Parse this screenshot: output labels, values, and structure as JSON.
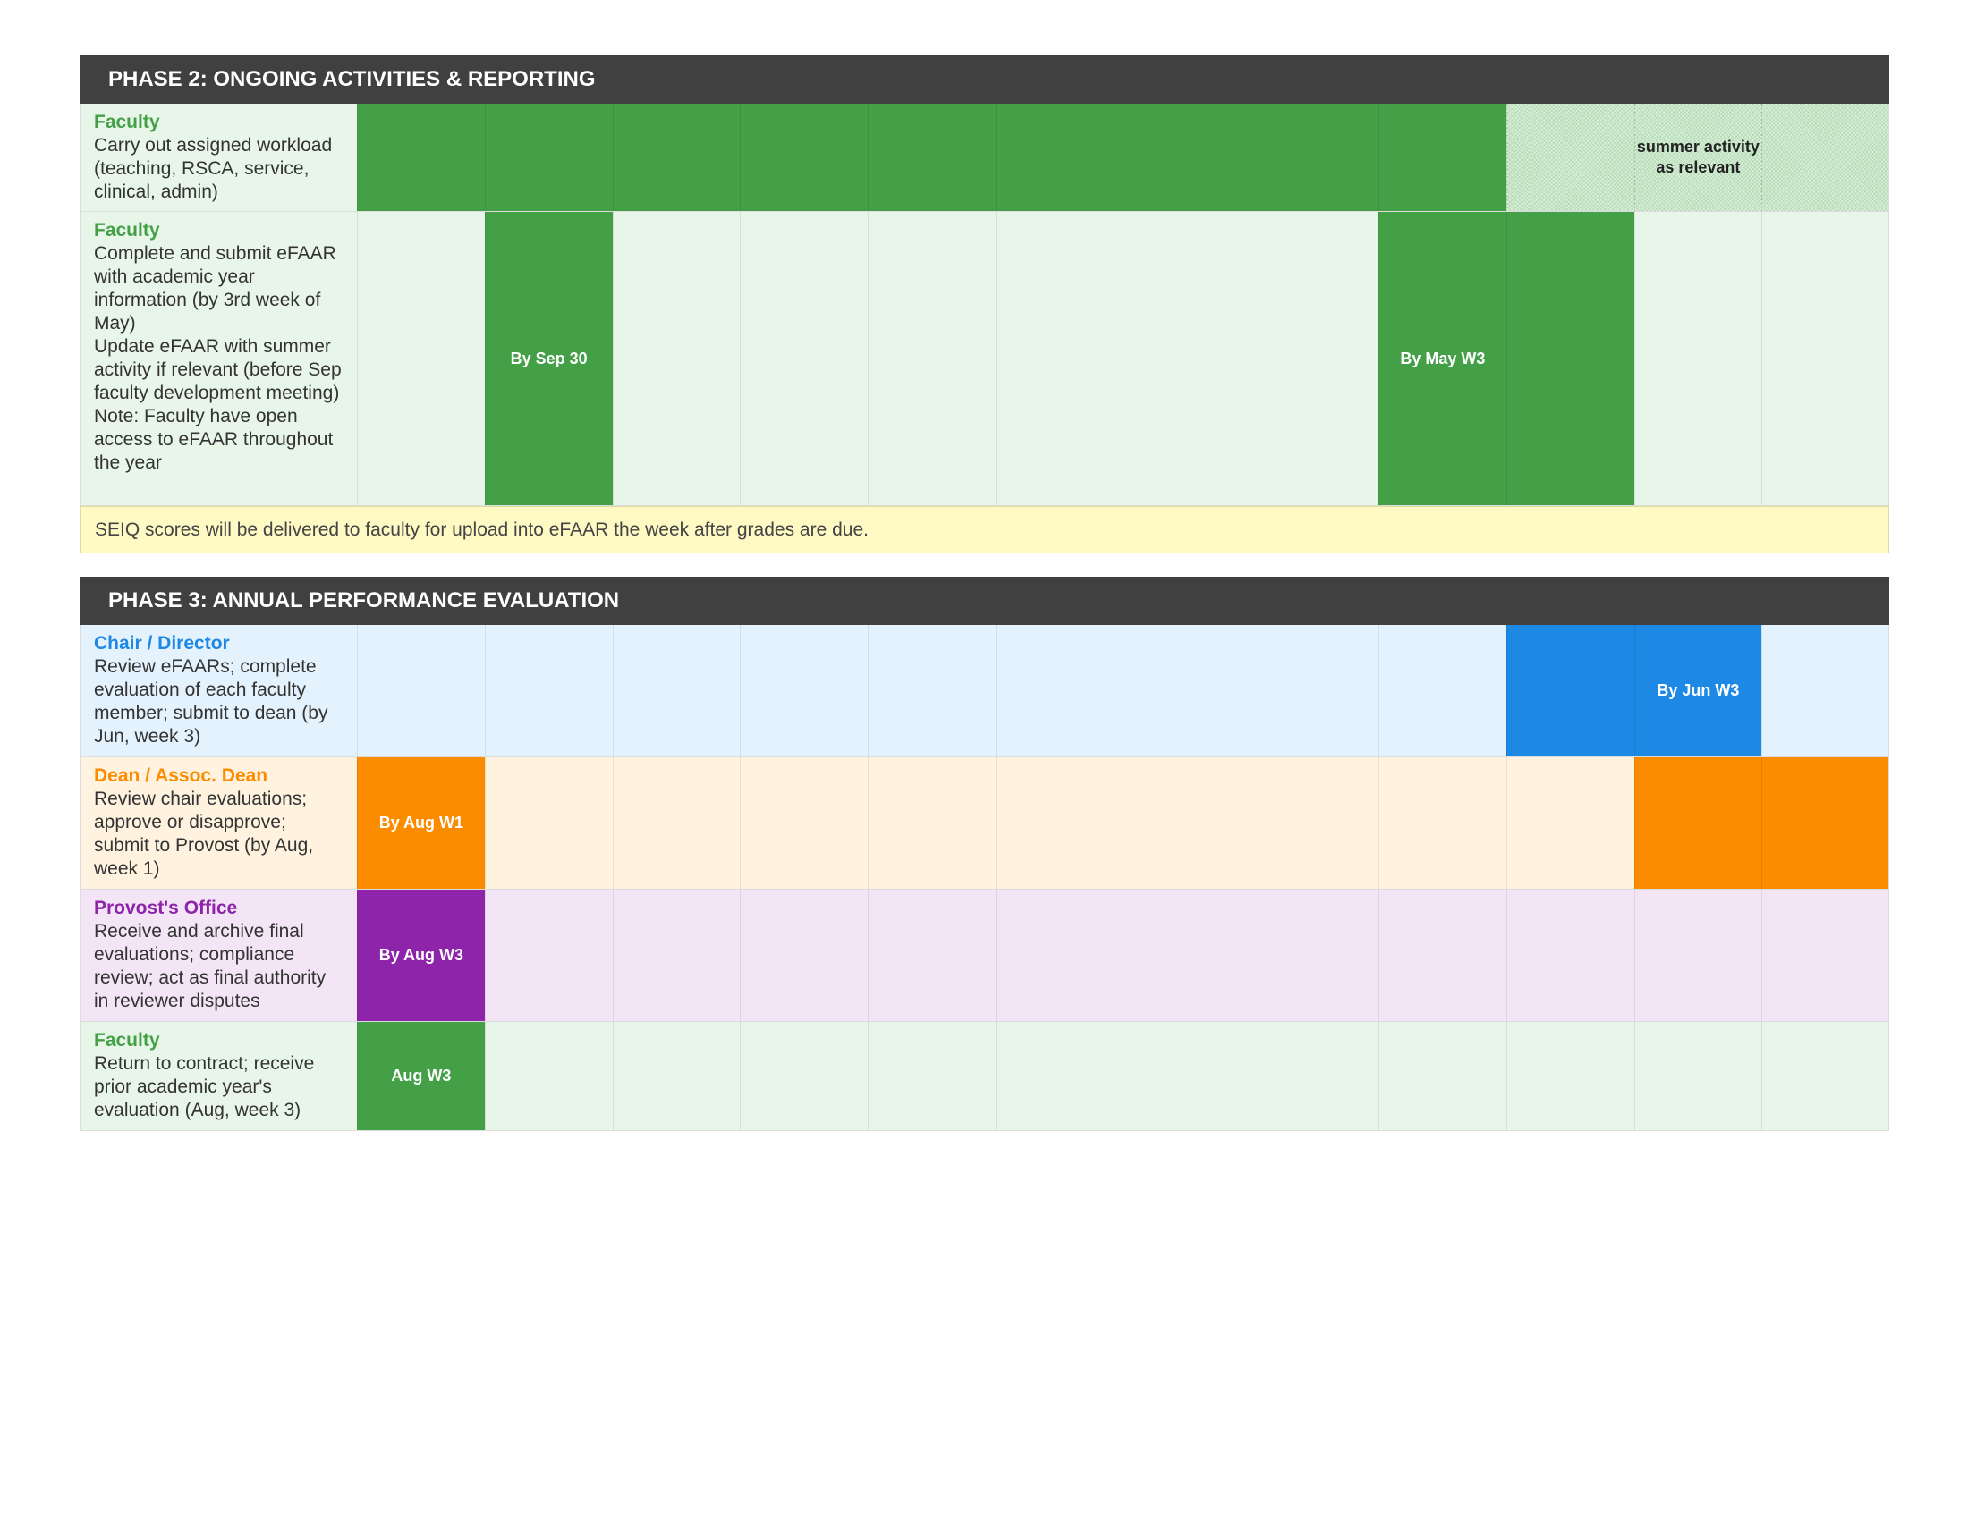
{
  "phase2": {
    "title": "PHASE 2: ONGOING ACTIVITIES & REPORTING",
    "rows": [
      {
        "role": "Faculty",
        "description": "Carry out assigned workload (teaching, RSCA, service, clinical, admin)",
        "cells": [
          {
            "fill": "green",
            "text": ""
          },
          {
            "fill": "green",
            "text": ""
          },
          {
            "fill": "green",
            "text": ""
          },
          {
            "fill": "green",
            "text": ""
          },
          {
            "fill": "green",
            "text": ""
          },
          {
            "fill": "green",
            "text": ""
          },
          {
            "fill": "green",
            "text": ""
          },
          {
            "fill": "green",
            "text": ""
          },
          {
            "fill": "green",
            "text": ""
          },
          {
            "fill": "hatch",
            "text": ""
          },
          {
            "fill": "hatch",
            "text": "summer activity as relevant"
          },
          {
            "fill": "hatch",
            "text": ""
          }
        ]
      },
      {
        "role": "Faculty",
        "description": "Complete and submit eFAAR with academic year information (by 3rd week of May)\nUpdate eFAAR with summer activity if relevant (before Sep faculty development meeting)\nNote: Faculty have open access to eFAAR throughout the year",
        "cells": [
          {
            "fill": "",
            "text": ""
          },
          {
            "fill": "green",
            "text": "By Sep 30"
          },
          {
            "fill": "",
            "text": ""
          },
          {
            "fill": "",
            "text": ""
          },
          {
            "fill": "",
            "text": ""
          },
          {
            "fill": "",
            "text": ""
          },
          {
            "fill": "",
            "text": ""
          },
          {
            "fill": "",
            "text": ""
          },
          {
            "fill": "green",
            "text": "By May W3"
          },
          {
            "fill": "green",
            "text": ""
          },
          {
            "fill": "",
            "text": ""
          },
          {
            "fill": "",
            "text": ""
          }
        ]
      }
    ],
    "note": "SEIQ scores will be delivered to faculty for upload into eFAAR the week after grades are due."
  },
  "phase3": {
    "title": "PHASE 3: ANNUAL PERFORMANCE EVALUATION",
    "rows": [
      {
        "role": "Chair / Director",
        "description": "Review eFAARs; complete evaluation of each faculty member; submit to dean (by Jun, week 3)",
        "cells": [
          {
            "fill": "",
            "text": ""
          },
          {
            "fill": "",
            "text": ""
          },
          {
            "fill": "",
            "text": ""
          },
          {
            "fill": "",
            "text": ""
          },
          {
            "fill": "",
            "text": ""
          },
          {
            "fill": "",
            "text": ""
          },
          {
            "fill": "",
            "text": ""
          },
          {
            "fill": "",
            "text": ""
          },
          {
            "fill": "",
            "text": ""
          },
          {
            "fill": "blue",
            "text": ""
          },
          {
            "fill": "blue",
            "text": "By Jun W3"
          },
          {
            "fill": "",
            "text": ""
          }
        ]
      },
      {
        "role": "Dean / Assoc. Dean",
        "description": "Review chair evaluations; approve or disapprove; submit to Provost (by Aug, week 1)",
        "cells": [
          {
            "fill": "orange",
            "text": "By Aug W1"
          },
          {
            "fill": "",
            "text": ""
          },
          {
            "fill": "",
            "text": ""
          },
          {
            "fill": "",
            "text": ""
          },
          {
            "fill": "",
            "text": ""
          },
          {
            "fill": "",
            "text": ""
          },
          {
            "fill": "",
            "text": ""
          },
          {
            "fill": "",
            "text": ""
          },
          {
            "fill": "",
            "text": ""
          },
          {
            "fill": "",
            "text": ""
          },
          {
            "fill": "orange",
            "text": ""
          },
          {
            "fill": "orange",
            "text": ""
          }
        ]
      },
      {
        "role": "Provost's Office",
        "description": "Receive and archive final evaluations; compliance review; act as final authority in reviewer disputes",
        "cells": [
          {
            "fill": "purple",
            "text": "By Aug W3"
          },
          {
            "fill": "",
            "text": ""
          },
          {
            "fill": "",
            "text": ""
          },
          {
            "fill": "",
            "text": ""
          },
          {
            "fill": "",
            "text": ""
          },
          {
            "fill": "",
            "text": ""
          },
          {
            "fill": "",
            "text": ""
          },
          {
            "fill": "",
            "text": ""
          },
          {
            "fill": "",
            "text": ""
          },
          {
            "fill": "",
            "text": ""
          },
          {
            "fill": "",
            "text": ""
          },
          {
            "fill": "",
            "text": ""
          }
        ]
      },
      {
        "role": "Faculty",
        "description": "Return to contract; receive prior academic year's evaluation (Aug, week 3)",
        "cells": [
          {
            "fill": "green",
            "text": "Aug W3"
          },
          {
            "fill": "",
            "text": ""
          },
          {
            "fill": "",
            "text": ""
          },
          {
            "fill": "",
            "text": ""
          },
          {
            "fill": "",
            "text": ""
          },
          {
            "fill": "",
            "text": ""
          },
          {
            "fill": "",
            "text": ""
          },
          {
            "fill": "",
            "text": ""
          },
          {
            "fill": "",
            "text": ""
          },
          {
            "fill": "",
            "text": ""
          },
          {
            "fill": "",
            "text": ""
          },
          {
            "fill": "",
            "text": ""
          }
        ]
      }
    ]
  },
  "colors": {
    "header": "#404040",
    "green": "#43a047",
    "blue": "#1e88e5",
    "orange": "#fb8c00",
    "purple": "#8e24aa",
    "note_background": "#fff9c4"
  }
}
